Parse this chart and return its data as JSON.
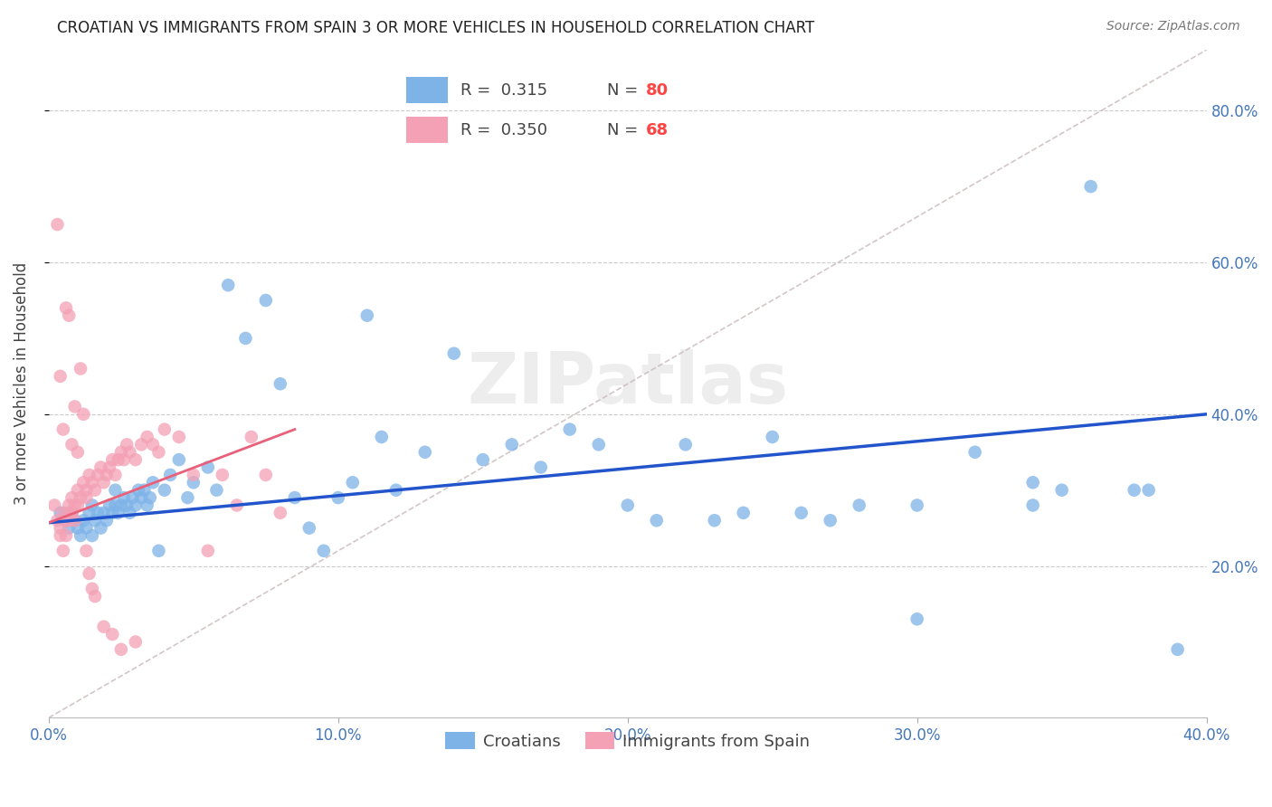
{
  "title": "CROATIAN VS IMMIGRANTS FROM SPAIN 3 OR MORE VEHICLES IN HOUSEHOLD CORRELATION CHART",
  "source": "Source: ZipAtlas.com",
  "ylabel": "3 or more Vehicles in Household",
  "xlim": [
    0.0,
    0.4
  ],
  "ylim": [
    0.0,
    0.88
  ],
  "xtick_vals": [
    0.0,
    0.1,
    0.2,
    0.3,
    0.4
  ],
  "xtick_labels": [
    "0.0%",
    "10.0%",
    "20.0%",
    "30.0%",
    "40.0%"
  ],
  "ytick_vals": [
    0.2,
    0.4,
    0.6,
    0.8
  ],
  "ytick_labels": [
    "20.0%",
    "40.0%",
    "60.0%",
    "80.0%"
  ],
  "legend_r1": "R =  0.315",
  "legend_n1": "N = 80",
  "legend_r2": "R =  0.350",
  "legend_n2": "N = 68",
  "color_blue": "#7EB3E8",
  "color_pink": "#F4A0B5",
  "color_blue_line": "#2255CC",
  "color_pink_line": "#E8607A",
  "watermark": "ZIPatlas",
  "background_color": "#FFFFFF",
  "blue_line_x": [
    0.0,
    0.4
  ],
  "blue_line_y": [
    0.257,
    0.4
  ],
  "pink_line_x": [
    0.0,
    0.085
  ],
  "pink_line_y": [
    0.257,
    0.38
  ],
  "diag_line_x": [
    0.0,
    0.4
  ],
  "diag_line_y": [
    0.0,
    0.88
  ],
  "blue_scatter_x": [
    0.004,
    0.006,
    0.007,
    0.008,
    0.009,
    0.01,
    0.011,
    0.012,
    0.013,
    0.014,
    0.015,
    0.015,
    0.016,
    0.017,
    0.018,
    0.019,
    0.02,
    0.021,
    0.022,
    0.023,
    0.023,
    0.024,
    0.025,
    0.026,
    0.027,
    0.028,
    0.029,
    0.03,
    0.031,
    0.032,
    0.033,
    0.034,
    0.035,
    0.036,
    0.038,
    0.04,
    0.042,
    0.045,
    0.048,
    0.05,
    0.055,
    0.058,
    0.062,
    0.068,
    0.075,
    0.08,
    0.085,
    0.09,
    0.095,
    0.1,
    0.105,
    0.11,
    0.115,
    0.12,
    0.13,
    0.14,
    0.15,
    0.16,
    0.17,
    0.18,
    0.19,
    0.2,
    0.21,
    0.22,
    0.23,
    0.25,
    0.27,
    0.3,
    0.32,
    0.34,
    0.36,
    0.375,
    0.38,
    0.34,
    0.3,
    0.28,
    0.26,
    0.24,
    0.35,
    0.39
  ],
  "blue_scatter_y": [
    0.27,
    0.26,
    0.25,
    0.27,
    0.26,
    0.25,
    0.24,
    0.26,
    0.25,
    0.27,
    0.24,
    0.28,
    0.26,
    0.27,
    0.25,
    0.27,
    0.26,
    0.28,
    0.27,
    0.28,
    0.3,
    0.27,
    0.28,
    0.29,
    0.28,
    0.27,
    0.29,
    0.28,
    0.3,
    0.29,
    0.3,
    0.28,
    0.29,
    0.31,
    0.22,
    0.3,
    0.32,
    0.34,
    0.29,
    0.31,
    0.33,
    0.3,
    0.57,
    0.5,
    0.55,
    0.44,
    0.29,
    0.25,
    0.22,
    0.29,
    0.31,
    0.53,
    0.37,
    0.3,
    0.35,
    0.48,
    0.34,
    0.36,
    0.33,
    0.38,
    0.36,
    0.28,
    0.26,
    0.36,
    0.26,
    0.37,
    0.26,
    0.13,
    0.35,
    0.31,
    0.7,
    0.3,
    0.3,
    0.28,
    0.28,
    0.28,
    0.27,
    0.27,
    0.3,
    0.09
  ],
  "pink_scatter_x": [
    0.002,
    0.003,
    0.004,
    0.004,
    0.005,
    0.005,
    0.006,
    0.006,
    0.007,
    0.007,
    0.007,
    0.008,
    0.008,
    0.009,
    0.009,
    0.01,
    0.01,
    0.011,
    0.012,
    0.013,
    0.013,
    0.014,
    0.015,
    0.016,
    0.017,
    0.018,
    0.019,
    0.02,
    0.021,
    0.022,
    0.023,
    0.024,
    0.025,
    0.026,
    0.027,
    0.028,
    0.03,
    0.032,
    0.034,
    0.036,
    0.038,
    0.04,
    0.045,
    0.05,
    0.055,
    0.06,
    0.065,
    0.07,
    0.075,
    0.08,
    0.003,
    0.004,
    0.005,
    0.006,
    0.007,
    0.008,
    0.009,
    0.01,
    0.011,
    0.012,
    0.013,
    0.014,
    0.015,
    0.016,
    0.019,
    0.022,
    0.025,
    0.03
  ],
  "pink_scatter_y": [
    0.28,
    0.26,
    0.25,
    0.24,
    0.27,
    0.22,
    0.26,
    0.24,
    0.28,
    0.27,
    0.26,
    0.29,
    0.27,
    0.28,
    0.26,
    0.3,
    0.28,
    0.29,
    0.31,
    0.3,
    0.29,
    0.32,
    0.31,
    0.3,
    0.32,
    0.33,
    0.31,
    0.32,
    0.33,
    0.34,
    0.32,
    0.34,
    0.35,
    0.34,
    0.36,
    0.35,
    0.34,
    0.36,
    0.37,
    0.36,
    0.35,
    0.38,
    0.37,
    0.32,
    0.22,
    0.32,
    0.28,
    0.37,
    0.32,
    0.27,
    0.65,
    0.45,
    0.38,
    0.54,
    0.53,
    0.36,
    0.41,
    0.35,
    0.46,
    0.4,
    0.22,
    0.19,
    0.17,
    0.16,
    0.12,
    0.11,
    0.09,
    0.1
  ]
}
